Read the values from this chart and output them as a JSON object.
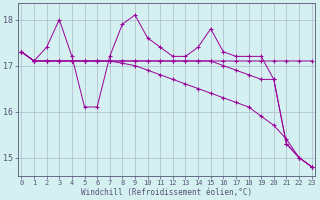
{
  "xlabel": "Windchill (Refroidissement éolien,°C)",
  "x": [
    0,
    1,
    2,
    3,
    4,
    5,
    6,
    7,
    8,
    9,
    10,
    11,
    12,
    13,
    14,
    15,
    16,
    17,
    18,
    19,
    20,
    21,
    22,
    23
  ],
  "line_jagged": [
    17.3,
    17.1,
    17.4,
    18.0,
    17.2,
    16.1,
    16.1,
    17.2,
    17.9,
    18.1,
    17.6,
    17.4,
    17.2,
    17.2,
    17.4,
    17.8,
    17.3,
    17.2,
    17.2,
    17.2,
    16.7,
    15.3,
    15.0,
    14.8
  ],
  "line_flat": [
    17.3,
    17.1,
    17.1,
    17.1,
    17.1,
    17.1,
    17.1,
    17.1,
    17.1,
    17.1,
    17.1,
    17.1,
    17.1,
    17.1,
    17.1,
    17.1,
    17.1,
    17.1,
    17.1,
    17.1,
    17.1,
    17.1,
    17.1,
    17.1
  ],
  "line_slope1": [
    17.3,
    17.1,
    17.1,
    17.1,
    17.1,
    17.1,
    17.1,
    17.1,
    17.05,
    17.0,
    16.9,
    16.8,
    16.7,
    16.6,
    16.5,
    16.4,
    16.3,
    16.2,
    16.1,
    15.9,
    15.7,
    15.4,
    15.0,
    14.8
  ],
  "line_slope2": [
    17.3,
    17.1,
    17.1,
    17.1,
    17.1,
    17.1,
    17.1,
    17.1,
    17.1,
    17.1,
    17.1,
    17.1,
    17.1,
    17.1,
    17.1,
    17.1,
    17.0,
    16.9,
    16.8,
    16.7,
    16.7,
    15.3,
    15.0,
    14.8
  ],
  "ylim": [
    14.6,
    18.35
  ],
  "yticks": [
    15,
    16,
    17,
    18
  ],
  "xticks": [
    0,
    1,
    2,
    3,
    4,
    5,
    6,
    7,
    8,
    9,
    10,
    11,
    12,
    13,
    14,
    15,
    16,
    17,
    18,
    19,
    20,
    21,
    22,
    23
  ],
  "line_color": "#990099",
  "bg_color": "#d4f0f0",
  "grid_color": "#b0b8cc",
  "axes_color": "#555577"
}
